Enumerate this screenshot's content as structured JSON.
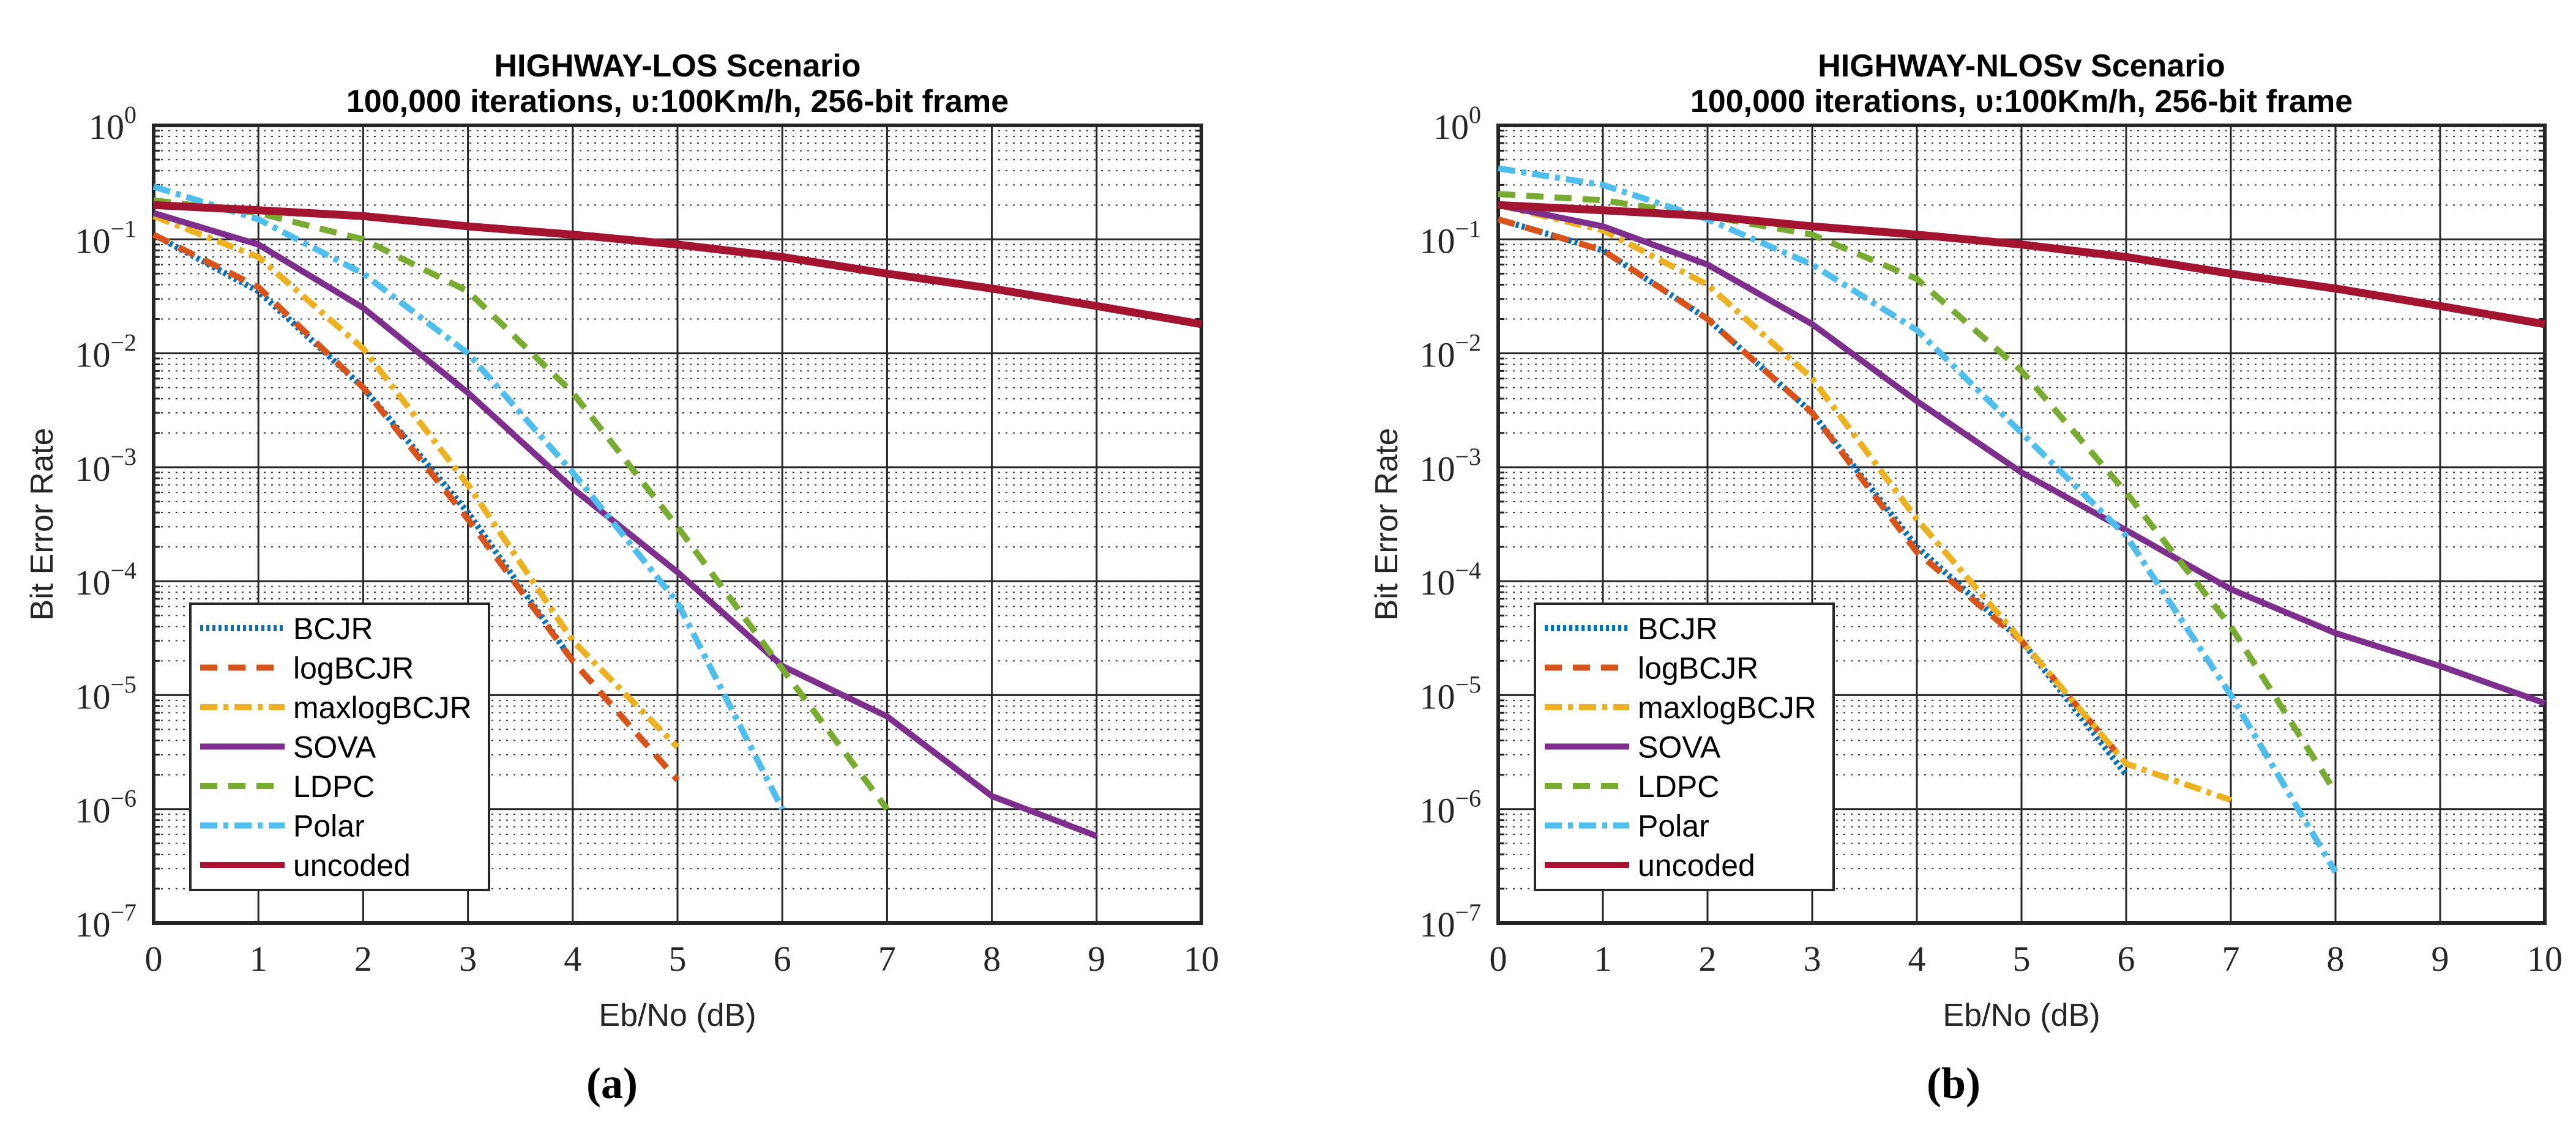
{
  "figure": {
    "captions": [
      "(a)",
      "(b)"
    ]
  },
  "legend": [
    {
      "name": "BCJR",
      "color": "#0072BD",
      "style": "dotted"
    },
    {
      "name": "logBCJR",
      "color": "#D95319",
      "style": "dashed"
    },
    {
      "name": "maxlogBCJR",
      "color": "#EDB120",
      "style": "dashdot"
    },
    {
      "name": "SOVA",
      "color": "#7E2F8E",
      "style": "solid"
    },
    {
      "name": "LDPC",
      "color": "#77AC30",
      "style": "dashed"
    },
    {
      "name": "Polar",
      "color": "#4DBEEE",
      "style": "dashdot"
    },
    {
      "name": "uncoded",
      "color": "#A2142F",
      "style": "solid"
    }
  ],
  "chart_data": [
    {
      "type": "line",
      "title": "HIGHWAY-LOS Scenario",
      "subtitle": "100,000 iterations,  υ:100Km/h, 256-bit frame",
      "xlabel": "Eb/No (dB)",
      "ylabel": "Bit Error Rate",
      "yscale": "log",
      "xlim": [
        0,
        10
      ],
      "ylim": [
        1e-07,
        1
      ],
      "xticks": [
        0,
        1,
        2,
        3,
        4,
        5,
        6,
        7,
        8,
        9,
        10
      ],
      "yticks": [
        "10^0",
        "10^-1",
        "10^-2",
        "10^-3",
        "10^-4",
        "10^-5",
        "10^-6",
        "10^-7"
      ],
      "grid": true,
      "legend_position": "lower left",
      "series": [
        {
          "name": "BCJR",
          "x": [
            0,
            1,
            2,
            3,
            4
          ],
          "values": [
            0.11,
            0.035,
            0.005,
            0.0004,
            2e-05
          ]
        },
        {
          "name": "logBCJR",
          "x": [
            0,
            1,
            2,
            3,
            4,
            5
          ],
          "values": [
            0.11,
            0.038,
            0.005,
            0.00035,
            2e-05,
            1.8e-06
          ]
        },
        {
          "name": "maxlogBCJR",
          "x": [
            0,
            1,
            2,
            3,
            4,
            5
          ],
          "values": [
            0.16,
            0.07,
            0.011,
            0.0007,
            3e-05,
            3.5e-06
          ]
        },
        {
          "name": "SOVA",
          "x": [
            0,
            1,
            2,
            3,
            4,
            5,
            6,
            7,
            8,
            9
          ],
          "values": [
            0.17,
            0.09,
            0.025,
            0.0045,
            0.00065,
            0.00012,
            1.8e-05,
            6.5e-06,
            1.3e-06,
            5.8e-07
          ]
        },
        {
          "name": "LDPC",
          "x": [
            0,
            1,
            2,
            3,
            4,
            5,
            6,
            7
          ],
          "values": [
            0.22,
            0.17,
            0.1,
            0.035,
            0.0045,
            0.0003,
            1.7e-05,
            1e-06
          ]
        },
        {
          "name": "Polar",
          "x": [
            0,
            1,
            2,
            3,
            4,
            5,
            6
          ],
          "values": [
            0.29,
            0.15,
            0.05,
            0.01,
            0.0009,
            6.5e-05,
            1e-06
          ]
        },
        {
          "name": "uncoded",
          "x": [
            0,
            1,
            2,
            3,
            4,
            5,
            6,
            7,
            8,
            9,
            10
          ],
          "values": [
            0.2,
            0.18,
            0.16,
            0.13,
            0.11,
            0.09,
            0.07,
            0.05,
            0.037,
            0.026,
            0.018
          ]
        }
      ]
    },
    {
      "type": "line",
      "title": "HIGHWAY-NLOSv Scenario",
      "subtitle": "100,000 iterations,  υ:100Km/h, 256-bit frame",
      "xlabel": "Eb/No (dB)",
      "ylabel": "Bit Error Rate",
      "yscale": "log",
      "xlim": [
        0,
        10
      ],
      "ylim": [
        1e-07,
        1
      ],
      "xticks": [
        0,
        1,
        2,
        3,
        4,
        5,
        6,
        7,
        8,
        9,
        10
      ],
      "yticks": [
        "10^0",
        "10^-1",
        "10^-2",
        "10^-3",
        "10^-4",
        "10^-5",
        "10^-6",
        "10^-7"
      ],
      "grid": true,
      "legend_position": "lower left",
      "series": [
        {
          "name": "BCJR",
          "x": [
            0,
            1,
            2,
            3,
            4,
            5,
            6
          ],
          "values": [
            0.15,
            0.08,
            0.02,
            0.003,
            0.0002,
            3e-05,
            2e-06
          ]
        },
        {
          "name": "logBCJR",
          "x": [
            0,
            1,
            2,
            3,
            4,
            5,
            6
          ],
          "values": [
            0.15,
            0.08,
            0.02,
            0.003,
            0.00018,
            3e-05,
            2.5e-06
          ]
        },
        {
          "name": "maxlogBCJR",
          "x": [
            0,
            1,
            2,
            3,
            4,
            5,
            6,
            7
          ],
          "values": [
            0.2,
            0.12,
            0.04,
            0.006,
            0.00035,
            3e-05,
            2.5e-06,
            1.2e-06
          ]
        },
        {
          "name": "SOVA",
          "x": [
            0,
            1,
            2,
            3,
            4,
            5,
            6,
            7,
            8,
            9,
            10
          ],
          "values": [
            0.2,
            0.13,
            0.06,
            0.018,
            0.0038,
            0.0009,
            0.00028,
            8.5e-05,
            3.5e-05,
            1.8e-05,
            8.5e-06
          ]
        },
        {
          "name": "LDPC",
          "x": [
            0,
            1,
            2,
            3,
            4,
            5,
            6,
            7,
            8
          ],
          "values": [
            0.25,
            0.22,
            0.16,
            0.11,
            0.045,
            0.007,
            0.0006,
            4e-05,
            1.4e-06
          ]
        },
        {
          "name": "Polar",
          "x": [
            0,
            1,
            2,
            3,
            4,
            5,
            6,
            7,
            8
          ],
          "values": [
            0.42,
            0.3,
            0.15,
            0.06,
            0.016,
            0.002,
            0.00025,
            1e-05,
            2.8e-07
          ]
        },
        {
          "name": "uncoded",
          "x": [
            0,
            1,
            2,
            3,
            4,
            5,
            6,
            7,
            8,
            9,
            10
          ],
          "values": [
            0.2,
            0.18,
            0.16,
            0.13,
            0.11,
            0.09,
            0.07,
            0.05,
            0.037,
            0.026,
            0.018
          ]
        }
      ]
    }
  ]
}
